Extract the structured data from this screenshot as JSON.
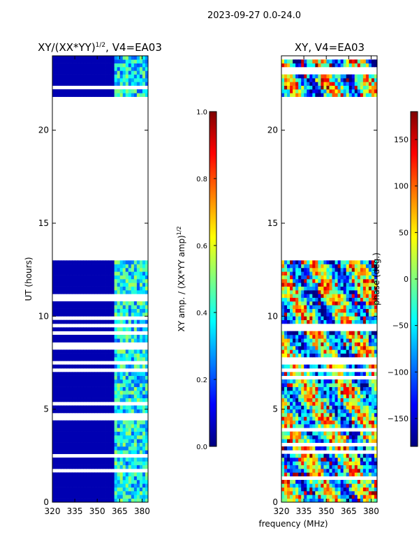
{
  "figure": {
    "suptitle": "2023-09-27 0.0-24.0",
    "xlabel": "frequency (MHz)"
  },
  "colors": {
    "jet": [
      "#00007f",
      "#0000ff",
      "#007fff",
      "#00ffff",
      "#7fff7f",
      "#ffff00",
      "#ff7f00",
      "#ff0000",
      "#7f0000"
    ]
  },
  "chart_data": [
    {
      "type": "heatmap",
      "name": "left",
      "title_main": "XY/(XX*YY)",
      "title_sup": "1/2",
      "title_tail": ", V4=EA03",
      "ylabel": "UT (hours)",
      "xlim": [
        320,
        384
      ],
      "ylim": [
        0,
        24
      ],
      "xticks": [
        320,
        335,
        350,
        365,
        380
      ],
      "yticks": [
        0,
        5,
        10,
        15,
        20
      ],
      "data_bands": [
        [
          0,
          13
        ],
        [
          21.8,
          24
        ]
      ],
      "band_edge_mhz": 361,
      "low_region_value": 0.05,
      "high_region_value_range": [
        0.2,
        0.55
      ],
      "colorbar": {
        "label_main": "XY amp. / (XX*YY amp)",
        "label_sup": "1/2",
        "ticks": [
          "0.0",
          "0.2",
          "0.4",
          "0.6",
          "0.8",
          "1.0"
        ],
        "range": [
          0,
          1
        ]
      }
    },
    {
      "type": "heatmap",
      "name": "right",
      "title": "XY, V4=EA03",
      "xlim": [
        320,
        384
      ],
      "ylim": [
        0,
        24
      ],
      "xticks": [
        320,
        335,
        350,
        365,
        380
      ],
      "yticks": [
        0,
        5,
        10,
        15,
        20
      ],
      "data_bands": [
        [
          0,
          13
        ],
        [
          21.8,
          24
        ]
      ],
      "colorbar": {
        "label": "phase (deg.)",
        "ticks": [
          "150",
          "100",
          "50",
          "0",
          "−50",
          "−100",
          "−150"
        ],
        "range": [
          -180,
          180
        ]
      }
    }
  ]
}
